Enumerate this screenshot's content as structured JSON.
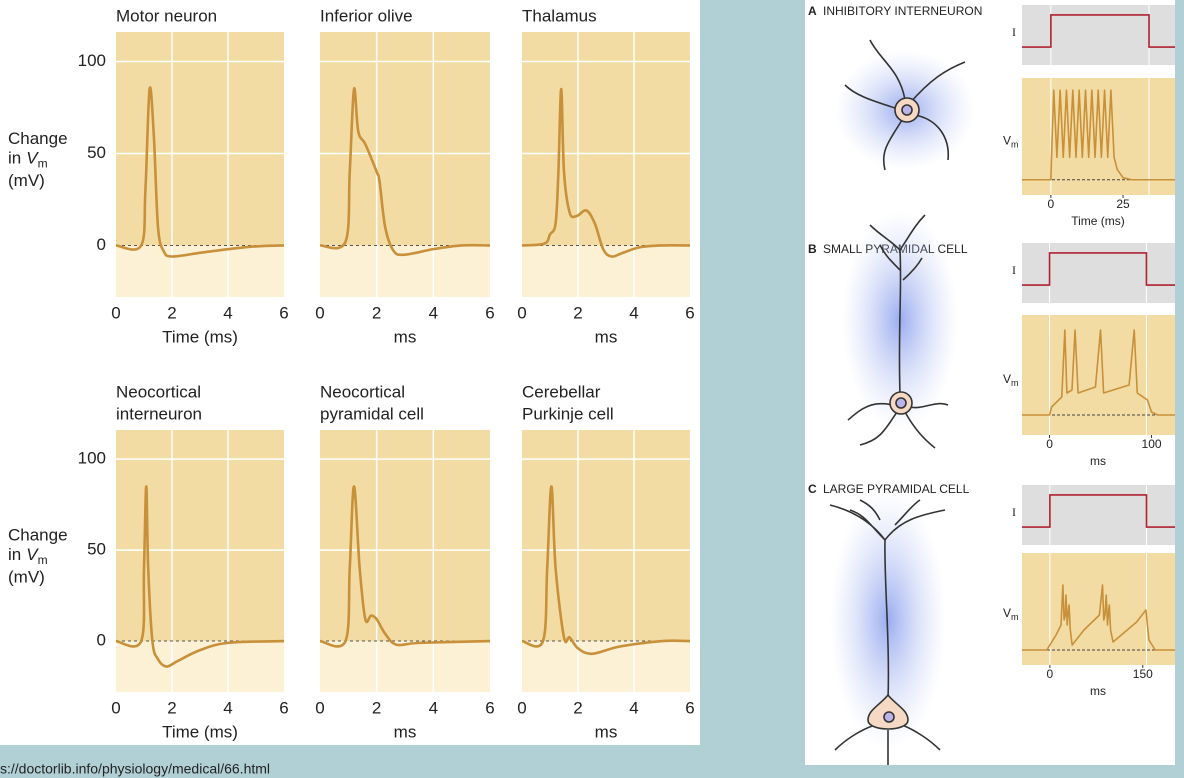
{
  "left": {
    "y_label": {
      "line1": "Change",
      "line2": "in",
      "var": "V",
      "sub": "m",
      "unit": "(mV)"
    },
    "xlim": [
      0,
      6
    ],
    "ylim": [
      -28,
      116
    ],
    "xticks": [
      0,
      2,
      4,
      6
    ],
    "yticks": [
      0,
      50,
      100
    ],
    "panels": [
      {
        "title": [
          "Motor neuron"
        ],
        "x_label": "Time (ms)",
        "x": [
          0,
          0.9,
          1.05,
          1.2,
          1.35,
          1.5,
          1.7,
          2,
          3,
          4,
          5,
          6
        ],
        "values": [
          0,
          0,
          30,
          85,
          60,
          10,
          -3,
          -6,
          -4,
          -2,
          -0.5,
          0
        ]
      },
      {
        "title": [
          "Inferior olive"
        ],
        "x_label": "ms",
        "x": [
          0,
          0.9,
          1.05,
          1.2,
          1.35,
          1.6,
          2.0,
          2.1,
          2.3,
          2.6,
          3,
          4,
          5,
          6
        ],
        "values": [
          0,
          2,
          40,
          85,
          62,
          55,
          40,
          35,
          10,
          -3,
          -5,
          -2,
          0,
          0
        ]
      },
      {
        "title": [
          "Thalamus"
        ],
        "x_label": "ms",
        "x": [
          0,
          0.8,
          1.0,
          1.2,
          1.3,
          1.4,
          1.5,
          1.7,
          1.95,
          2.3,
          2.6,
          2.9,
          3.2,
          3.6,
          4.2,
          5,
          6
        ],
        "values": [
          0,
          1,
          6,
          12,
          40,
          85,
          40,
          18,
          16,
          19,
          12,
          -2,
          -6,
          -4,
          -1,
          0,
          0
        ]
      },
      {
        "title": [
          "Neocortical",
          "interneuron"
        ],
        "x_label": "Time (ms)",
        "x": [
          0,
          0.9,
          1.0,
          1.08,
          1.15,
          1.3,
          1.5,
          1.8,
          2.2,
          3,
          4,
          6
        ],
        "values": [
          0,
          0,
          40,
          85,
          40,
          0,
          -10,
          -14,
          -11,
          -5,
          -1,
          0
        ]
      },
      {
        "title": [
          "Neocortical",
          "pyramidal cell"
        ],
        "x_label": "ms",
        "x": [
          0,
          0.9,
          1.05,
          1.2,
          1.4,
          1.6,
          1.8,
          2.0,
          2.3,
          2.7,
          3.5,
          6
        ],
        "values": [
          0,
          0,
          40,
          85,
          40,
          12,
          14,
          12,
          4,
          -2,
          -1,
          0
        ]
      },
      {
        "title": [
          "Cerebellar",
          "Purkinje cell"
        ],
        "x_label": "ms",
        "x": [
          0,
          0.75,
          0.9,
          1.05,
          1.2,
          1.5,
          1.7,
          2,
          2.5,
          3.5,
          5,
          6
        ],
        "values": [
          0,
          0,
          40,
          85,
          40,
          2,
          2,
          -4,
          -7,
          -3,
          0,
          0
        ]
      }
    ]
  },
  "right": {
    "current_label": "I",
    "voltage_label": {
      "var": "V",
      "sub": "m"
    },
    "current_ylim": [
      -0.56,
      1.31
    ],
    "panels": [
      {
        "letter": "A",
        "title": "INHIBITORY INTERNEURON",
        "xlim": [
          -10,
          43
        ],
        "xticks": [
          0,
          25
        ],
        "x_label": "Time (ms)",
        "current": {
          "x": [
            -10,
            0,
            0,
            34,
            34,
            43
          ],
          "values": [
            0,
            0,
            1,
            1,
            0,
            0
          ]
        },
        "voltage": {
          "ylim": [
            -15,
            100
          ],
          "x": [
            -10,
            0,
            0.2,
            1,
            2.1,
            3.2,
            4.3,
            5.4,
            6.5,
            7.6,
            8.7,
            9.8,
            10.9,
            12,
            13.1,
            14.2,
            15.3,
            16.4,
            17.5,
            18.6,
            19.7,
            20.8,
            21.9,
            23,
            25,
            28,
            43
          ],
          "values": [
            0,
            0,
            20,
            88,
            22,
            88,
            22,
            88,
            22,
            88,
            22,
            88,
            22,
            88,
            22,
            88,
            22,
            88,
            22,
            88,
            22,
            88,
            22,
            10,
            2,
            0,
            0
          ]
        }
      },
      {
        "letter": "B",
        "title": "SMALL PYRAMIDAL CELL",
        "xlim": [
          -27,
          123
        ],
        "xticks": [
          0,
          100
        ],
        "x_label": "ms",
        "current": {
          "x": [
            -27,
            0,
            0,
            95,
            95,
            123
          ],
          "values": [
            0,
            0,
            1,
            1,
            0,
            0
          ]
        },
        "voltage": {
          "ylim": [
            -20,
            100
          ],
          "x": [
            -27,
            0,
            2,
            12,
            15,
            17,
            22,
            25,
            28,
            45,
            50,
            53,
            78,
            83,
            86,
            96,
            100,
            106,
            123
          ],
          "values": [
            0,
            0,
            8,
            18,
            85,
            22,
            25,
            85,
            22,
            28,
            85,
            22,
            30,
            85,
            22,
            15,
            3,
            0,
            0
          ]
        }
      },
      {
        "letter": "C",
        "title": "LARGE PYRAMIDAL CELL",
        "xlim": [
          -45,
          202
        ],
        "xticks": [
          0,
          150
        ],
        "x_label": "ms",
        "current": {
          "x": [
            -45,
            0,
            0,
            156,
            156,
            202
          ],
          "values": [
            0,
            0,
            1,
            1,
            0,
            0
          ]
        },
        "voltage": {
          "ylim": [
            -15,
            97
          ],
          "x": [
            -45,
            -5,
            0,
            10,
            18,
            21,
            23,
            25,
            26,
            28,
            30,
            31,
            33,
            36,
            55,
            80,
            85,
            87,
            89,
            91,
            93,
            95,
            96,
            98,
            102,
            140,
            155,
            160,
            170,
            202
          ],
          "values": [
            0,
            0,
            5,
            15,
            25,
            65,
            30,
            35,
            55,
            25,
            40,
            45,
            20,
            5,
            20,
            35,
            65,
            30,
            35,
            55,
            25,
            40,
            45,
            20,
            8,
            28,
            40,
            10,
            0,
            0
          ]
        }
      }
    ]
  },
  "source": "s://doctorlib.info/physiology/medical/66.html"
}
